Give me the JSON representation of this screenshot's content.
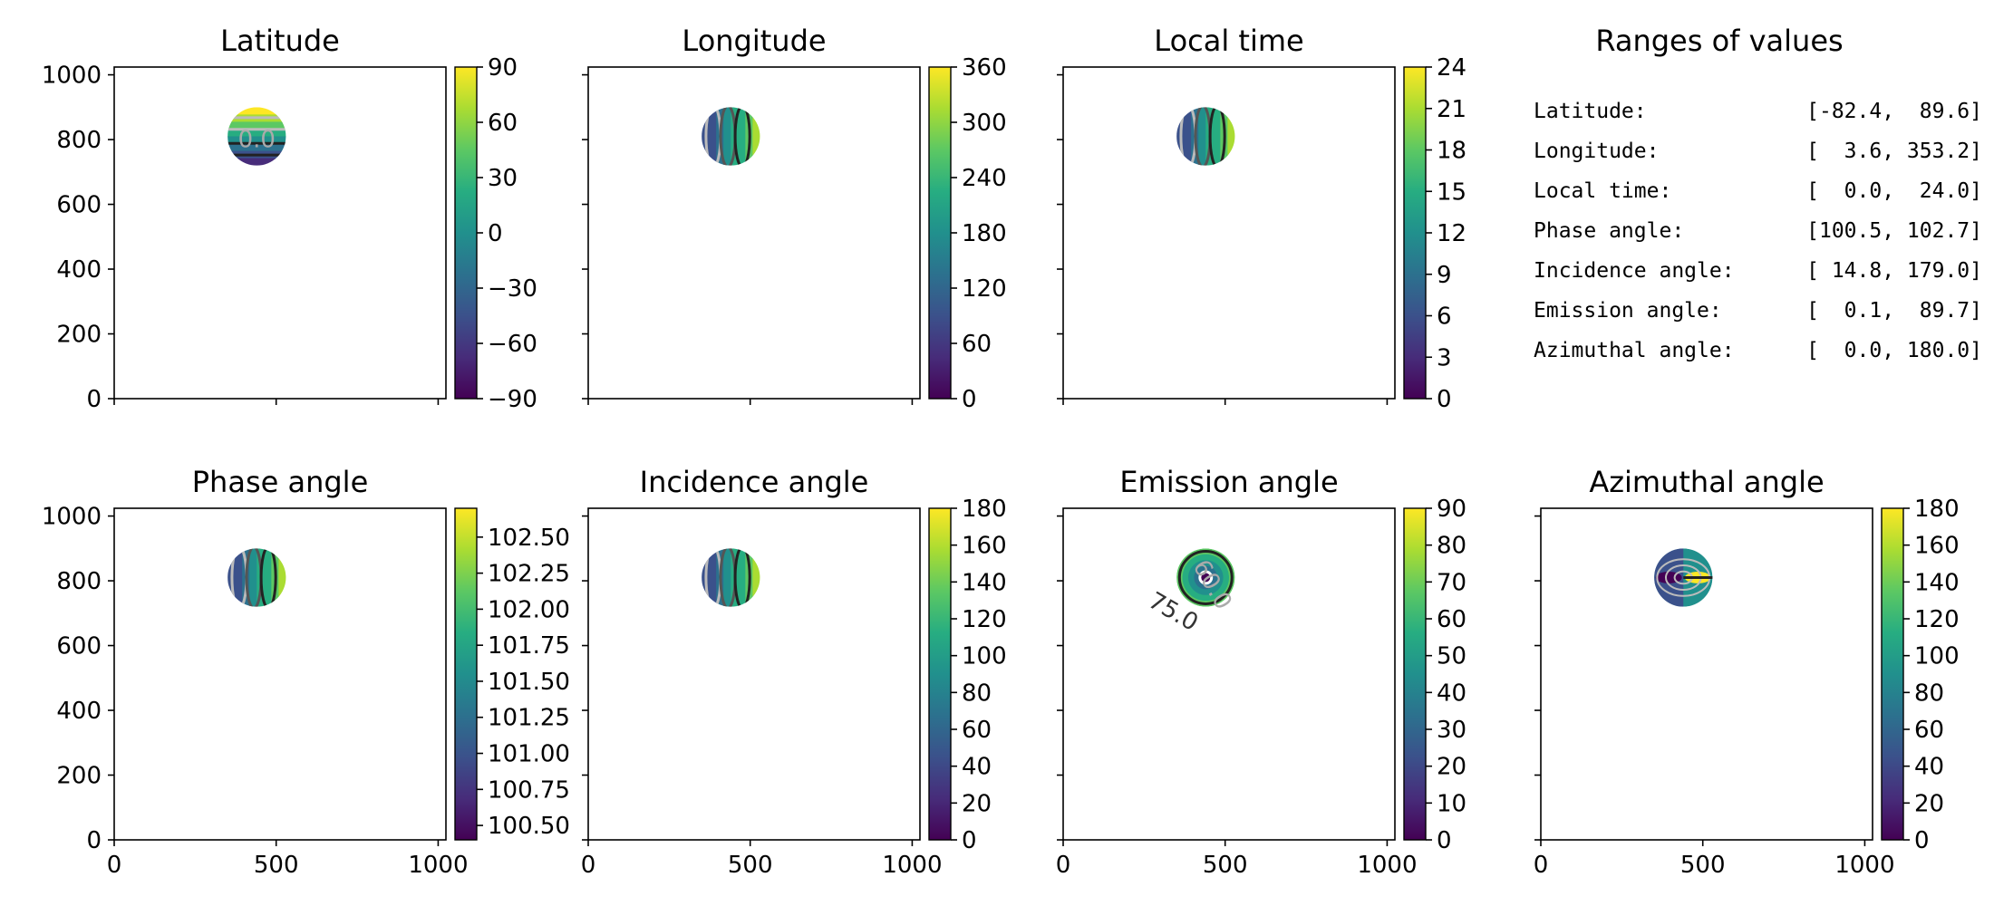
{
  "chart_data": [
    {
      "type": "heatmap",
      "title": "Latitude",
      "xlim": [
        0,
        1024
      ],
      "ylim": [
        0,
        1024
      ],
      "xticks": [
        "0",
        "500",
        "1000"
      ],
      "yticks": [
        "0",
        "200",
        "400",
        "600",
        "800",
        "1000"
      ],
      "show_xticklabels": false,
      "show_yticklabels": true,
      "disk": {
        "center": [
          440,
          810
        ],
        "radius": 90,
        "pattern": "horizontal"
      },
      "contour_labels": [
        "0.0"
      ],
      "colorbar": {
        "range": [
          -90,
          90
        ],
        "ticks": [
          "90",
          "60",
          "30",
          "0",
          "−30",
          "−60",
          "−90"
        ]
      },
      "colormap": "viridis"
    },
    {
      "type": "heatmap",
      "title": "Longitude",
      "xlim": [
        0,
        1024
      ],
      "ylim": [
        0,
        1024
      ],
      "xticks": [
        "0",
        "500",
        "1000"
      ],
      "yticks": [
        "0",
        "200",
        "400",
        "600",
        "800",
        "1000"
      ],
      "show_xticklabels": false,
      "show_yticklabels": false,
      "disk": {
        "center": [
          440,
          810
        ],
        "radius": 90,
        "pattern": "vertical"
      },
      "contour_labels": [],
      "colorbar": {
        "range": [
          0,
          360
        ],
        "ticks": [
          "360",
          "300",
          "240",
          "180",
          "120",
          "60",
          "0"
        ]
      },
      "colormap": "viridis"
    },
    {
      "type": "heatmap",
      "title": "Local time",
      "xlim": [
        0,
        1024
      ],
      "ylim": [
        0,
        1024
      ],
      "xticks": [
        "0",
        "500",
        "1000"
      ],
      "yticks": [
        "0",
        "200",
        "400",
        "600",
        "800",
        "1000"
      ],
      "show_xticklabels": false,
      "show_yticklabels": false,
      "disk": {
        "center": [
          440,
          810
        ],
        "radius": 90,
        "pattern": "vertical"
      },
      "contour_labels": [],
      "colorbar": {
        "range": [
          0,
          24
        ],
        "ticks": [
          "24",
          "21",
          "18",
          "15",
          "12",
          "9",
          "6",
          "3",
          "0"
        ]
      },
      "colormap": "viridis"
    },
    {
      "type": "heatmap",
      "title": "Phase angle",
      "xlim": [
        0,
        1024
      ],
      "ylim": [
        0,
        1024
      ],
      "xticks": [
        "0",
        "500",
        "1000"
      ],
      "yticks": [
        "0",
        "200",
        "400",
        "600",
        "800",
        "1000"
      ],
      "show_xticklabels": true,
      "show_yticklabels": true,
      "disk": {
        "center": [
          440,
          810
        ],
        "radius": 90,
        "pattern": "vertical"
      },
      "contour_labels": [],
      "colorbar": {
        "range": [
          100.4,
          102.7
        ],
        "ticks": [
          "102.50",
          "102.25",
          "102.00",
          "101.75",
          "101.50",
          "101.25",
          "101.00",
          "100.75",
          "100.50"
        ],
        "tick_values": [
          102.5,
          102.25,
          102.0,
          101.75,
          101.5,
          101.25,
          101.0,
          100.75,
          100.5
        ]
      },
      "colormap": "viridis"
    },
    {
      "type": "heatmap",
      "title": "Incidence angle",
      "xlim": [
        0,
        1024
      ],
      "ylim": [
        0,
        1024
      ],
      "xticks": [
        "0",
        "500",
        "1000"
      ],
      "yticks": [
        "0",
        "200",
        "400",
        "600",
        "800",
        "1000"
      ],
      "show_xticklabels": true,
      "show_yticklabels": false,
      "disk": {
        "center": [
          440,
          810
        ],
        "radius": 90,
        "pattern": "vertical"
      },
      "contour_labels": [],
      "colorbar": {
        "range": [
          0,
          180
        ],
        "ticks": [
          "180",
          "160",
          "140",
          "120",
          "100",
          "80",
          "60",
          "40",
          "20",
          "0"
        ]
      },
      "colormap": "viridis"
    },
    {
      "type": "heatmap",
      "title": "Emission angle",
      "xlim": [
        0,
        1024
      ],
      "ylim": [
        0,
        1024
      ],
      "xticks": [
        "0",
        "500",
        "1000"
      ],
      "yticks": [
        "0",
        "200",
        "400",
        "600",
        "800",
        "1000"
      ],
      "show_xticklabels": true,
      "show_yticklabels": false,
      "disk": {
        "center": [
          440,
          810
        ],
        "radius": 90,
        "pattern": "radial"
      },
      "contour_labels": [
        "60.0",
        "75.0"
      ],
      "colorbar": {
        "range": [
          0,
          90
        ],
        "ticks": [
          "90",
          "80",
          "70",
          "60",
          "50",
          "40",
          "30",
          "20",
          "10",
          "0"
        ]
      },
      "colormap": "viridis"
    },
    {
      "type": "heatmap",
      "title": "Azimuthal angle",
      "xlim": [
        0,
        1024
      ],
      "ylim": [
        0,
        1024
      ],
      "xticks": [
        "0",
        "500",
        "1000"
      ],
      "yticks": [
        "0",
        "200",
        "400",
        "600",
        "800",
        "1000"
      ],
      "show_xticklabels": true,
      "show_yticklabels": false,
      "disk": {
        "center": [
          440,
          810
        ],
        "radius": 90,
        "pattern": "azimuthal"
      },
      "contour_labels": [],
      "colorbar": {
        "range": [
          0,
          180
        ],
        "ticks": [
          "180",
          "160",
          "140",
          "120",
          "100",
          "80",
          "60",
          "40",
          "20",
          "0"
        ]
      },
      "colormap": "viridis"
    }
  ],
  "ranges": {
    "title": "Ranges of values",
    "rows": [
      {
        "label": "Latitude:",
        "value": "[-82.4,  89.6]"
      },
      {
        "label": "Longitude:",
        "value": "[  3.6, 353.2]"
      },
      {
        "label": "Local time:",
        "value": "[  0.0,  24.0]"
      },
      {
        "label": "Phase angle:",
        "value": "[100.5, 102.7]"
      },
      {
        "label": "Incidence angle:",
        "value": "[ 14.8, 179.0]"
      },
      {
        "label": "Emission angle:",
        "value": "[  0.1,  89.7]"
      },
      {
        "label": "Azimuthal angle:",
        "value": "[  0.0, 180.0]"
      }
    ]
  },
  "colors": {
    "viridis": [
      "#440154",
      "#472c7a",
      "#3b518b",
      "#2c718e",
      "#21908d",
      "#27ad81",
      "#5cc863",
      "#aadc32",
      "#fde725"
    ],
    "contour_dark": "#222222",
    "contour_mid": "#555555",
    "contour_light": "#bbbbbb"
  }
}
